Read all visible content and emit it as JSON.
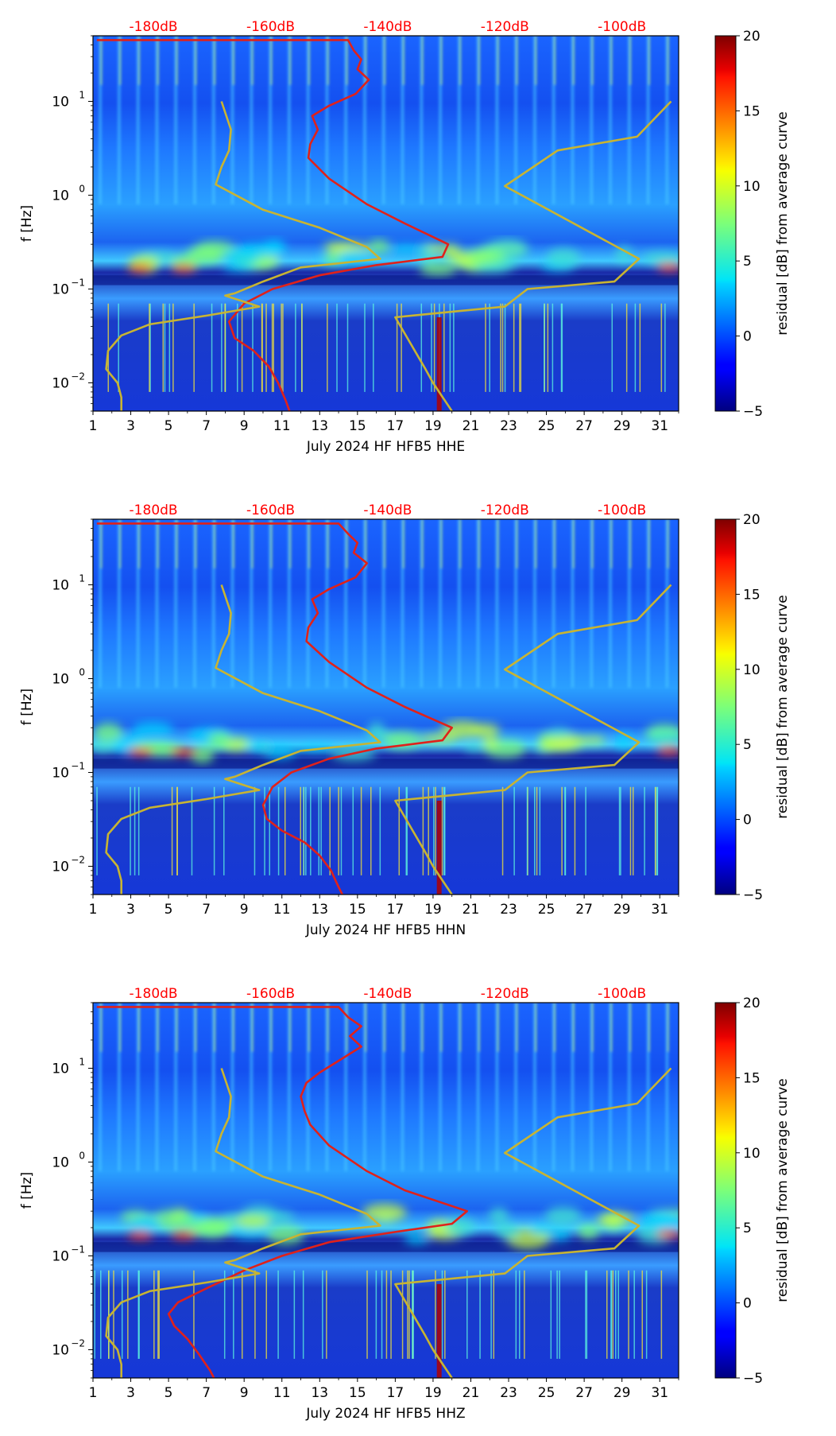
{
  "chart_data": [
    {
      "type": "heatmap",
      "panel": "HHE",
      "xlabel": "July 2024 HF HFB5  HHE",
      "ylabel": "f [Hz]",
      "x_ticks": [
        "1",
        "3",
        "5",
        "7",
        "9",
        "11",
        "13",
        "15",
        "17",
        "19",
        "21",
        "23",
        "25",
        "27",
        "29",
        "31"
      ],
      "xlim": [
        1,
        32
      ],
      "ylim": [
        0.005,
        50
      ],
      "y_ticks": [
        {
          "base": "10",
          "exp": "1",
          "value": 10
        },
        {
          "base": "10",
          "exp": "0",
          "value": 1
        },
        {
          "base": "10",
          "exp": "−1",
          "value": 0.1
        },
        {
          "base": "10",
          "exp": "−2",
          "value": 0.01
        }
      ],
      "db_scale_labels": [
        "-180dB",
        "-160dB",
        "-140dB",
        "-120dB",
        "-100dB"
      ],
      "db_scale_positions_day": [
        4.2,
        10.4,
        16.6,
        22.8,
        29.0
      ],
      "colorbar": {
        "label": "residual [dB] from average curve",
        "min": -5,
        "max": 20,
        "ticks": [
          "20",
          "15",
          "10",
          "5",
          "0",
          "−5"
        ]
      },
      "series": [
        {
          "name": "average PSD (red)",
          "color": "#e0211a",
          "points": [
            [
              1.2,
              45
            ],
            [
              14.5,
              45
            ],
            [
              14.8,
              35
            ],
            [
              15.2,
              28
            ],
            [
              15.0,
              22
            ],
            [
              15.6,
              17
            ],
            [
              14.9,
              12
            ],
            [
              13.5,
              9
            ],
            [
              12.6,
              7
            ],
            [
              12.9,
              5
            ],
            [
              12.5,
              3.5
            ],
            [
              12.4,
              2.5
            ],
            [
              13.5,
              1.5
            ],
            [
              15.5,
              0.8
            ],
            [
              17.5,
              0.5
            ],
            [
              19.8,
              0.3
            ],
            [
              19.5,
              0.22
            ],
            [
              16.0,
              0.18
            ],
            [
              13.0,
              0.14
            ],
            [
              10.5,
              0.1
            ],
            [
              9.0,
              0.07
            ],
            [
              8.2,
              0.045
            ],
            [
              8.5,
              0.03
            ],
            [
              9.5,
              0.022
            ],
            [
              10.3,
              0.015
            ],
            [
              10.8,
              0.01
            ],
            [
              11.2,
              0.0065
            ],
            [
              11.4,
              0.005
            ]
          ]
        },
        {
          "name": "high noise model (yellow)",
          "color": "#c8b432",
          "points": [
            [
              31.6,
              10
            ],
            [
              29.8,
              4.2
            ],
            [
              25.6,
              3
            ],
            [
              22.8,
              1.25
            ],
            [
              29.9,
              0.21
            ],
            [
              28.6,
              0.12
            ],
            [
              24.0,
              0.1
            ],
            [
              22.8,
              0.065
            ],
            [
              17.0,
              0.05
            ],
            [
              18.6,
              0.014
            ],
            [
              19.0,
              0.01
            ],
            [
              20.0,
              0.005
            ]
          ]
        },
        {
          "name": "low noise model (yellow)",
          "color": "#c8b432",
          "points": [
            [
              7.8,
              10
            ],
            [
              8.3,
              5
            ],
            [
              8.2,
              3
            ],
            [
              7.8,
              2
            ],
            [
              7.5,
              1.3
            ],
            [
              10.0,
              0.7
            ],
            [
              13.0,
              0.45
            ],
            [
              15.5,
              0.28
            ],
            [
              16.2,
              0.21
            ],
            [
              12.0,
              0.17
            ],
            [
              10.0,
              0.12
            ],
            [
              8.5,
              0.09
            ],
            [
              8.0,
              0.085
            ],
            [
              9.8,
              0.065
            ],
            [
              7.0,
              0.052
            ],
            [
              4.0,
              0.042
            ],
            [
              2.5,
              0.032
            ],
            [
              1.8,
              0.022
            ],
            [
              1.7,
              0.014
            ],
            [
              2.3,
              0.01
            ],
            [
              2.5,
              0.007
            ],
            [
              2.5,
              0.005
            ]
          ]
        }
      ]
    },
    {
      "type": "heatmap",
      "panel": "HHN",
      "xlabel": "July 2024 HF HFB5  HHN",
      "ylabel": "f [Hz]",
      "x_ticks": [
        "1",
        "3",
        "5",
        "7",
        "9",
        "11",
        "13",
        "15",
        "17",
        "19",
        "21",
        "23",
        "25",
        "27",
        "29",
        "31"
      ],
      "xlim": [
        1,
        32
      ],
      "ylim": [
        0.005,
        50
      ],
      "y_ticks": [
        {
          "base": "10",
          "exp": "1",
          "value": 10
        },
        {
          "base": "10",
          "exp": "0",
          "value": 1
        },
        {
          "base": "10",
          "exp": "−1",
          "value": 0.1
        },
        {
          "base": "10",
          "exp": "−2",
          "value": 0.01
        }
      ],
      "db_scale_labels": [
        "-180dB",
        "-160dB",
        "-140dB",
        "-120dB",
        "-100dB"
      ],
      "db_scale_positions_day": [
        4.2,
        10.4,
        16.6,
        22.8,
        29.0
      ],
      "colorbar": {
        "label": "residual [dB] from average curve",
        "min": -5,
        "max": 20,
        "ticks": [
          "20",
          "15",
          "10",
          "5",
          "0",
          "−5"
        ]
      },
      "series": [
        {
          "name": "average PSD (red)",
          "color": "#e0211a",
          "points": [
            [
              1.2,
              45
            ],
            [
              14.0,
              45
            ],
            [
              14.5,
              35
            ],
            [
              15.0,
              28
            ],
            [
              14.8,
              22
            ],
            [
              15.5,
              17
            ],
            [
              14.9,
              12
            ],
            [
              13.5,
              9
            ],
            [
              12.6,
              7
            ],
            [
              12.9,
              5
            ],
            [
              12.4,
              3.5
            ],
            [
              12.3,
              2.5
            ],
            [
              13.5,
              1.5
            ],
            [
              15.5,
              0.8
            ],
            [
              17.5,
              0.5
            ],
            [
              20.0,
              0.3
            ],
            [
              19.5,
              0.22
            ],
            [
              16.0,
              0.18
            ],
            [
              13.5,
              0.14
            ],
            [
              11.5,
              0.1
            ],
            [
              10.5,
              0.07
            ],
            [
              10.0,
              0.045
            ],
            [
              10.2,
              0.032
            ],
            [
              11.0,
              0.024
            ],
            [
              12.2,
              0.018
            ],
            [
              13.0,
              0.013
            ],
            [
              13.6,
              0.009
            ],
            [
              14.0,
              0.006
            ],
            [
              14.2,
              0.005
            ]
          ]
        },
        {
          "name": "high noise model (yellow)",
          "color": "#c8b432",
          "points": [
            [
              31.6,
              10
            ],
            [
              29.8,
              4.2
            ],
            [
              25.6,
              3
            ],
            [
              22.8,
              1.25
            ],
            [
              29.9,
              0.21
            ],
            [
              28.6,
              0.12
            ],
            [
              24.0,
              0.1
            ],
            [
              22.8,
              0.065
            ],
            [
              17.0,
              0.05
            ],
            [
              18.6,
              0.014
            ],
            [
              19.0,
              0.01
            ],
            [
              20.0,
              0.005
            ]
          ]
        },
        {
          "name": "low noise model (yellow)",
          "color": "#c8b432",
          "points": [
            [
              7.8,
              10
            ],
            [
              8.3,
              5
            ],
            [
              8.2,
              3
            ],
            [
              7.8,
              2
            ],
            [
              7.5,
              1.3
            ],
            [
              10.0,
              0.7
            ],
            [
              13.0,
              0.45
            ],
            [
              15.5,
              0.28
            ],
            [
              16.2,
              0.21
            ],
            [
              12.0,
              0.17
            ],
            [
              10.0,
              0.12
            ],
            [
              8.5,
              0.09
            ],
            [
              8.0,
              0.085
            ],
            [
              9.8,
              0.065
            ],
            [
              7.0,
              0.052
            ],
            [
              4.0,
              0.042
            ],
            [
              2.5,
              0.032
            ],
            [
              1.8,
              0.022
            ],
            [
              1.7,
              0.014
            ],
            [
              2.3,
              0.01
            ],
            [
              2.5,
              0.007
            ],
            [
              2.5,
              0.005
            ]
          ]
        }
      ]
    },
    {
      "type": "heatmap",
      "panel": "HHZ",
      "xlabel": "July 2024 HF HFB5  HHZ",
      "ylabel": "f [Hz]",
      "x_ticks": [
        "1",
        "3",
        "5",
        "7",
        "9",
        "11",
        "13",
        "15",
        "17",
        "19",
        "21",
        "23",
        "25",
        "27",
        "29",
        "31"
      ],
      "xlim": [
        1,
        32
      ],
      "ylim": [
        0.005,
        50
      ],
      "y_ticks": [
        {
          "base": "10",
          "exp": "1",
          "value": 10
        },
        {
          "base": "10",
          "exp": "0",
          "value": 1
        },
        {
          "base": "10",
          "exp": "−1",
          "value": 0.1
        },
        {
          "base": "10",
          "exp": "−2",
          "value": 0.01
        }
      ],
      "db_scale_labels": [
        "-180dB",
        "-160dB",
        "-140dB",
        "-120dB",
        "-100dB"
      ],
      "db_scale_positions_day": [
        4.2,
        10.4,
        16.6,
        22.8,
        29.0
      ],
      "colorbar": {
        "label": "residual [dB] from average curve",
        "min": -5,
        "max": 20,
        "ticks": [
          "20",
          "15",
          "10",
          "5",
          "0",
          "−5"
        ]
      },
      "series": [
        {
          "name": "average PSD (red)",
          "color": "#e0211a",
          "points": [
            [
              1.2,
              45
            ],
            [
              14.0,
              45
            ],
            [
              14.5,
              35
            ],
            [
              15.2,
              28
            ],
            [
              14.6,
              22
            ],
            [
              15.2,
              17
            ],
            [
              14.0,
              12
            ],
            [
              13.0,
              9
            ],
            [
              12.3,
              7
            ],
            [
              12.0,
              5
            ],
            [
              12.2,
              3.5
            ],
            [
              12.5,
              2.5
            ],
            [
              13.5,
              1.5
            ],
            [
              15.5,
              0.8
            ],
            [
              17.5,
              0.5
            ],
            [
              20.8,
              0.3
            ],
            [
              20.0,
              0.22
            ],
            [
              17.0,
              0.18
            ],
            [
              13.5,
              0.14
            ],
            [
              11.0,
              0.1
            ],
            [
              9.0,
              0.07
            ],
            [
              7.0,
              0.045
            ],
            [
              5.5,
              0.032
            ],
            [
              5.0,
              0.024
            ],
            [
              5.3,
              0.018
            ],
            [
              6.0,
              0.013
            ],
            [
              6.6,
              0.009
            ],
            [
              7.2,
              0.006
            ],
            [
              7.4,
              0.005
            ]
          ]
        },
        {
          "name": "high noise model (yellow)",
          "color": "#c8b432",
          "points": [
            [
              31.6,
              10
            ],
            [
              29.8,
              4.2
            ],
            [
              25.6,
              3
            ],
            [
              22.8,
              1.25
            ],
            [
              29.9,
              0.21
            ],
            [
              28.6,
              0.12
            ],
            [
              24.0,
              0.1
            ],
            [
              22.8,
              0.065
            ],
            [
              17.0,
              0.05
            ],
            [
              18.6,
              0.014
            ],
            [
              19.0,
              0.01
            ],
            [
              20.0,
              0.005
            ]
          ]
        },
        {
          "name": "low noise model (yellow)",
          "color": "#c8b432",
          "points": [
            [
              7.8,
              10
            ],
            [
              8.3,
              5
            ],
            [
              8.2,
              3
            ],
            [
              7.8,
              2
            ],
            [
              7.5,
              1.3
            ],
            [
              10.0,
              0.7
            ],
            [
              13.0,
              0.45
            ],
            [
              15.5,
              0.28
            ],
            [
              16.2,
              0.21
            ],
            [
              12.0,
              0.17
            ],
            [
              10.0,
              0.12
            ],
            [
              8.5,
              0.09
            ],
            [
              8.0,
              0.085
            ],
            [
              9.8,
              0.065
            ],
            [
              7.0,
              0.052
            ],
            [
              4.0,
              0.042
            ],
            [
              2.5,
              0.032
            ],
            [
              1.8,
              0.022
            ],
            [
              1.7,
              0.014
            ],
            [
              2.3,
              0.01
            ],
            [
              2.5,
              0.007
            ],
            [
              2.5,
              0.005
            ]
          ]
        }
      ]
    }
  ]
}
